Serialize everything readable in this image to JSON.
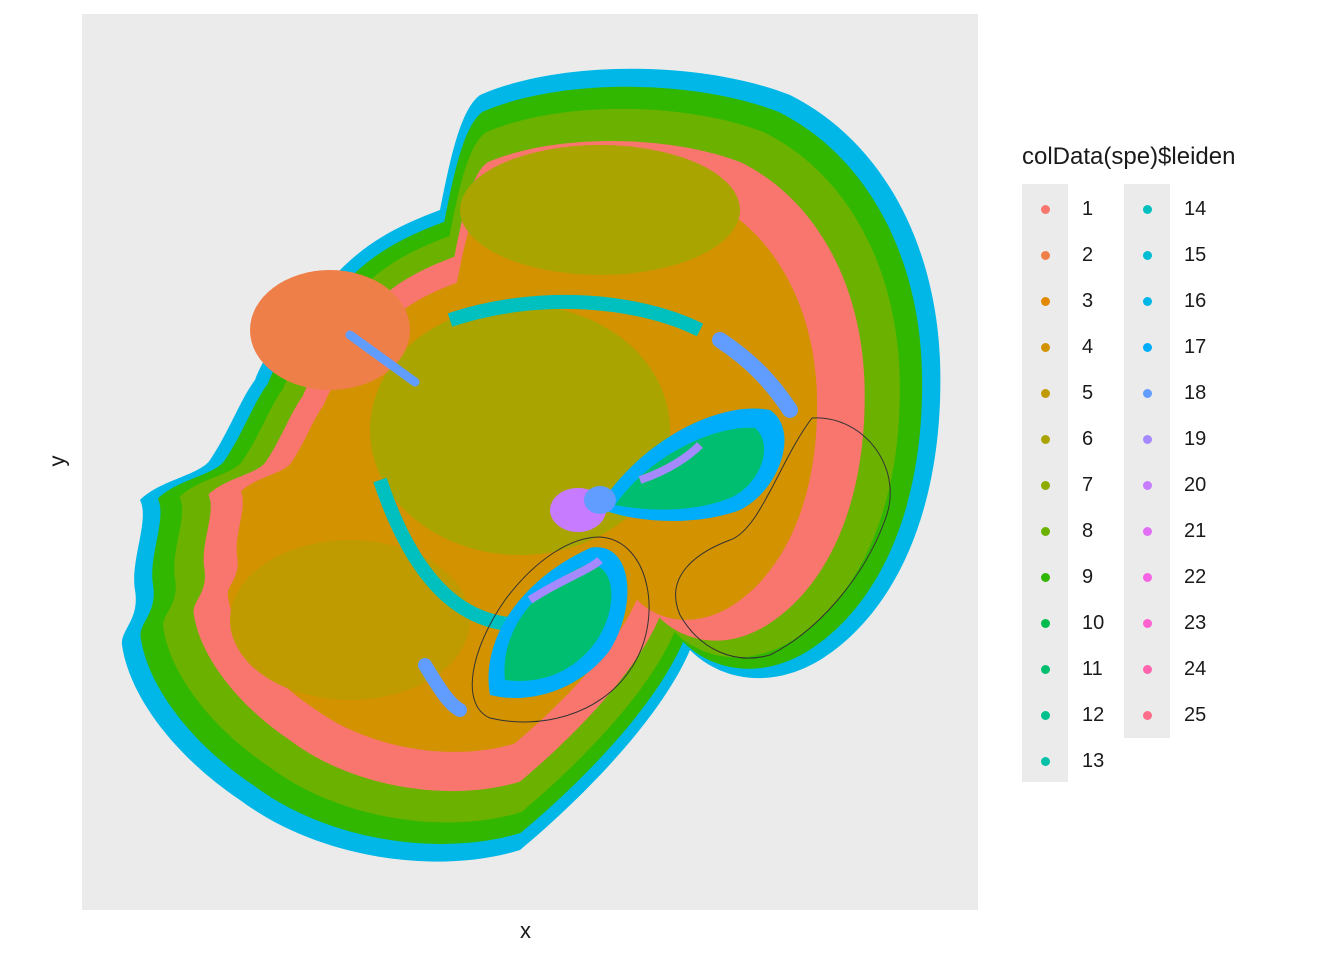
{
  "chart_data": {
    "type": "scatter",
    "title": "",
    "xlabel": "x",
    "ylabel": "y",
    "axis_ticks": "none",
    "panel_background": "#ebebeb",
    "grid": false,
    "legend": {
      "title": "colData(spe)$leiden",
      "placement": "right",
      "columns": 2,
      "entries": [
        {
          "label": "1",
          "color": "#F8766D"
        },
        {
          "label": "2",
          "color": "#EF7F49"
        },
        {
          "label": "3",
          "color": "#E38900"
        },
        {
          "label": "4",
          "color": "#D39200"
        },
        {
          "label": "5",
          "color": "#C09B00"
        },
        {
          "label": "6",
          "color": "#A9A400"
        },
        {
          "label": "7",
          "color": "#8EAB00"
        },
        {
          "label": "8",
          "color": "#6BB100"
        },
        {
          "label": "9",
          "color": "#31B700"
        },
        {
          "label": "10",
          "color": "#00BB4E"
        },
        {
          "label": "11",
          "color": "#00BE70"
        },
        {
          "label": "12",
          "color": "#00C08D"
        },
        {
          "label": "13",
          "color": "#00C1A7"
        },
        {
          "label": "14",
          "color": "#00C0BF"
        },
        {
          "label": "15",
          "color": "#00BDD4"
        },
        {
          "label": "16",
          "color": "#00B7E8"
        },
        {
          "label": "17",
          "color": "#00ADFA"
        },
        {
          "label": "18",
          "color": "#619CFF"
        },
        {
          "label": "19",
          "color": "#A58AFF"
        },
        {
          "label": "20",
          "color": "#C77CFF"
        },
        {
          "label": "21",
          "color": "#E36EF6"
        },
        {
          "label": "22",
          "color": "#F564E3"
        },
        {
          "label": "23",
          "color": "#FE61CF"
        },
        {
          "label": "24",
          "color": "#FF65AE"
        },
        {
          "label": "25",
          "color": "#FE6E8A"
        }
      ]
    },
    "annotations": [
      "two outlined hippocampal-shaped regions"
    ]
  }
}
